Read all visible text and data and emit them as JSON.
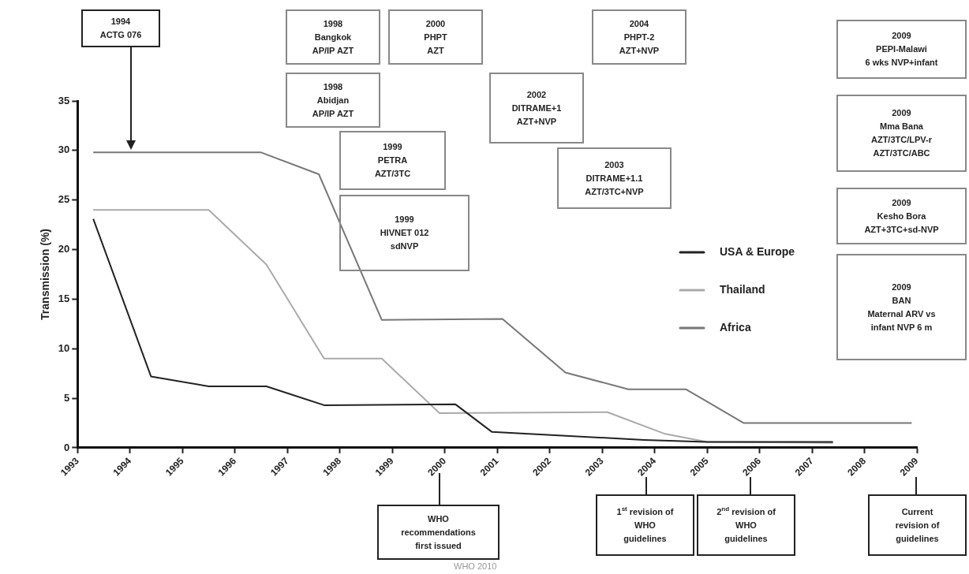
{
  "chart_data": {
    "type": "line",
    "ylabel": "Transmission (%)",
    "xlim": [
      1993,
      2009
    ],
    "xticks": [
      1993,
      1994,
      1995,
      1996,
      1997,
      1998,
      1999,
      2000,
      2001,
      2002,
      2003,
      2004,
      2005,
      2006,
      2007,
      2008,
      2009
    ],
    "ylim": [
      0,
      35
    ],
    "yticks": [
      0,
      5,
      10,
      15,
      20,
      25,
      30,
      35
    ],
    "grid": false,
    "legend": "right",
    "marker": "none",
    "line_style": "solid",
    "series": [
      {
        "name": "USA & Europe",
        "color": "#222222",
        "x": [
          1993.3,
          1994.4,
          1995.5,
          1996.6,
          1997.7,
          2000.2,
          2000.9,
          2003.8,
          2005.0,
          2007.4
        ],
        "values": [
          23.1,
          7.2,
          6.2,
          6.2,
          4.3,
          4.4,
          1.6,
          0.8,
          0.6,
          0.6
        ]
      },
      {
        "name": "Thailand",
        "color": "#aaaaaa",
        "x": [
          1993.3,
          1995.5,
          1996.6,
          1997.7,
          1998.8,
          1999.9,
          2003.1,
          2004.2,
          2005.0,
          2007.4
        ],
        "values": [
          24.0,
          24.0,
          18.5,
          9.0,
          9.0,
          3.5,
          3.6,
          1.4,
          0.6,
          0.5
        ]
      },
      {
        "name": "Africa",
        "color": "#777777",
        "x": [
          1993.3,
          1996.5,
          1997.6,
          1998.8,
          2001.1,
          2002.3,
          2003.5,
          2004.6,
          2005.7,
          2008.9
        ],
        "values": [
          29.8,
          29.8,
          27.6,
          12.9,
          13.0,
          7.6,
          5.9,
          5.9,
          2.5,
          2.5
        ]
      }
    ],
    "annotations": [
      "1994\nACTG 076",
      "1998\nBangkok\nAP/IP AZT",
      "2000\nPHPT\nAZT",
      "2004\nPHPT-2\nAZT+NVP",
      "1998\nAbidjan\nAP/IP AZT",
      "2002\nDITRAME+1\nAZT+NVP",
      "1999\nPETRA\nAZT/3TC",
      "2003\nDITRAME+1.1\nAZT/3TC+NVP",
      "1999\nHIVNET 012\nsdNVP",
      "2009\nPEPI-Malawi\n6 wks NVP+infant",
      "2009\nMma Bana\nAZT/3TC/LPV-r\nAZT/3TC/ABC",
      "2009\nKesho Bora\nAZT+3TC+sd-NVP",
      "2009\nBAN\nMaternal ARV vs\ninfant NVP 6 m",
      "WHO\nrecommendations\nfirst issued",
      "1$^{st}$ revision of\nWHO\nguidelines",
      "2$^{nd}$ revision of\nWHO\nguidelines",
      "Current\nrevision of\nguidelines",
      "WHO 2010"
    ]
  }
}
